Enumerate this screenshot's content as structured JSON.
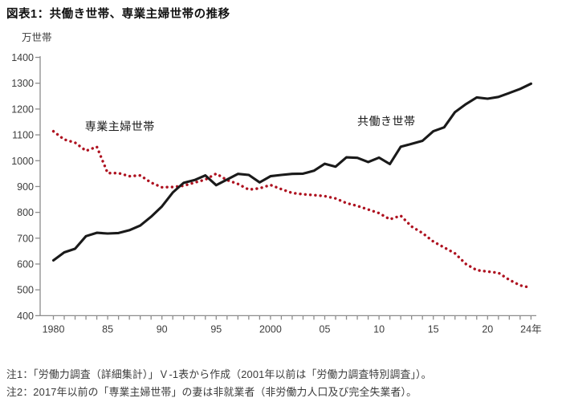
{
  "page": {
    "title": "図表1：共働き世帯、専業主婦世帯の推移",
    "notes": [
      "注1：「労働力調査（詳細集計）」Ｖ-1表から作成（2001年以前は「労働力調査特別調査」）。",
      "注2：2017年以前の「専業主婦世帯」の妻は非就業者（非労働力人口及び完全失業者）。"
    ]
  },
  "chart_data": {
    "type": "line",
    "title": "図表1：共働き世帯、専業主婦世帯の推移",
    "unit_label": "万世帯",
    "xlabel": "",
    "ylabel": "万世帯",
    "ylim": [
      400,
      1400
    ],
    "ytick_step": 100,
    "grid": false,
    "legend_position": "inline-annotations",
    "x": [
      1980,
      1981,
      1982,
      1983,
      1984,
      1985,
      1986,
      1987,
      1988,
      1989,
      1990,
      1991,
      1992,
      1993,
      1994,
      1995,
      1996,
      1997,
      1998,
      1999,
      2000,
      2001,
      2002,
      2003,
      2004,
      2005,
      2006,
      2007,
      2008,
      2009,
      2010,
      2011,
      2012,
      2013,
      2014,
      2015,
      2016,
      2017,
      2018,
      2019,
      2020,
      2021,
      2022,
      2023,
      2024
    ],
    "xticks": [
      {
        "year": 1980,
        "label": "1980"
      },
      {
        "year": 1985,
        "label": "85"
      },
      {
        "year": 1990,
        "label": "90"
      },
      {
        "year": 1995,
        "label": "95"
      },
      {
        "year": 2000,
        "label": "2000"
      },
      {
        "year": 2005,
        "label": "05"
      },
      {
        "year": 2010,
        "label": "10"
      },
      {
        "year": 2015,
        "label": "15"
      },
      {
        "year": 2020,
        "label": "20"
      },
      {
        "year": 2024,
        "label": "24年"
      }
    ],
    "series": [
      {
        "name": "専業主婦世帯",
        "style": "dotted",
        "color": "#ae1220",
        "values": [
          1114,
          1082,
          1070,
          1038,
          1054,
          952,
          952,
          940,
          943,
          915,
          897,
          898,
          903,
          915,
          927,
          950,
          925,
          910,
          888,
          893,
          906,
          890,
          875,
          870,
          867,
          863,
          854,
          836,
          825,
          811,
          797,
          773,
          787,
          745,
          720,
          687,
          664,
          641,
          600,
          576,
          571,
          566,
          539,
          517,
          508
        ]
      },
      {
        "name": "共働き世帯",
        "style": "solid",
        "color": "#1a1a1a",
        "values": [
          614,
          645,
          659,
          708,
          721,
          718,
          720,
          731,
          749,
          783,
          823,
          877,
          914,
          925,
          943,
          905,
          927,
          949,
          945,
          916,
          940,
          945,
          949,
          950,
          961,
          988,
          977,
          1013,
          1011,
          995,
          1012,
          987,
          1054,
          1065,
          1077,
          1114,
          1129,
          1188,
          1219,
          1245,
          1240,
          1247,
          1262,
          1278,
          1298
        ]
      }
    ],
    "annotations": [
      {
        "text": "専業主婦世帯",
        "year": 1982.9,
        "value": 1117
      },
      {
        "text": "共働き世帯",
        "year": 2008.0,
        "value": 1138
      }
    ],
    "axis_color": "#8c8c8c"
  }
}
